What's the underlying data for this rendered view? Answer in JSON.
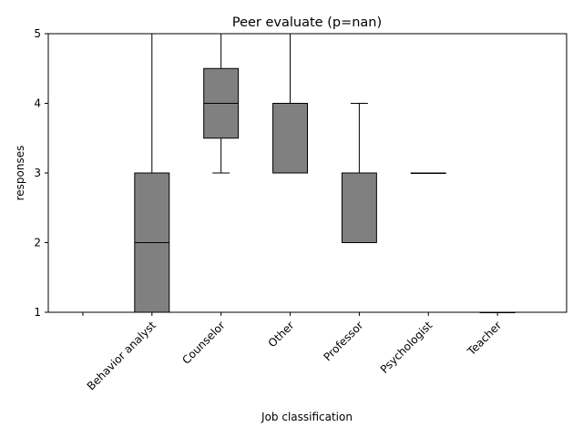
{
  "chart_data": {
    "type": "box",
    "title": "Peer evaluate (p=nan)",
    "xlabel": "Job classification",
    "ylabel": "responses",
    "ylim": [
      1,
      5
    ],
    "yticks": [
      1,
      2,
      3,
      4,
      5
    ],
    "grid": false,
    "legend": "none",
    "categories": [
      "",
      "Behavior analyst",
      "Counselor",
      "Other",
      "Professor",
      "Psychologist",
      "Teacher"
    ],
    "boxes": [
      {
        "category": "",
        "empty": true
      },
      {
        "category": "Behavior analyst",
        "whislo": 1,
        "q1": 1,
        "med": 2,
        "q3": 3,
        "whishi": 5
      },
      {
        "category": "Counselor",
        "whislo": 3,
        "q1": 3.5,
        "med": 4,
        "q3": 4.5,
        "whishi": 5
      },
      {
        "category": "Other",
        "whislo": 3,
        "q1": 3,
        "med": 3,
        "q3": 4,
        "whishi": 5
      },
      {
        "category": "Professor",
        "whislo": 2,
        "q1": 2,
        "med": 2,
        "q3": 3,
        "whishi": 4
      },
      {
        "category": "Psychologist",
        "whislo": 3,
        "q1": 3,
        "med": 3,
        "q3": 3,
        "whishi": 3
      },
      {
        "category": "Teacher",
        "whislo": 1,
        "q1": 1,
        "med": 1,
        "q3": 1,
        "whishi": 1
      }
    ],
    "colors": {
      "box_fill": "#808080",
      "line": "#000000"
    }
  }
}
